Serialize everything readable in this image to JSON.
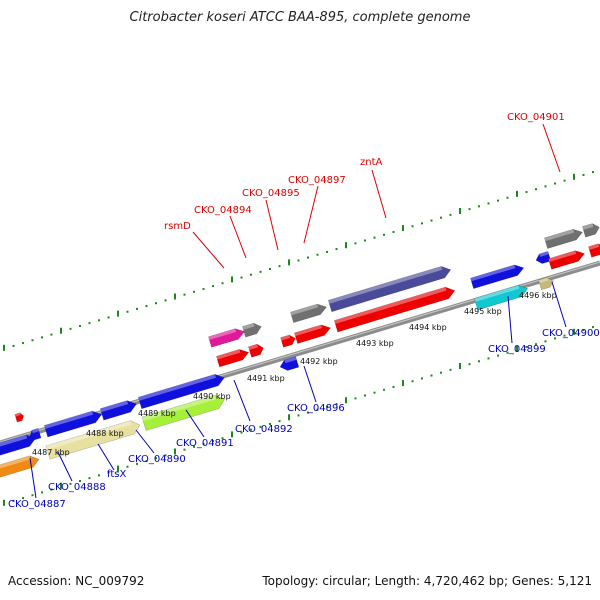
{
  "title": "Citrobacter koseri ATCC BAA-895, complete genome",
  "footer": {
    "accession": "Accession: NC_009792",
    "stats": "Topology: circular; Length: 4,720,462 bp; Genes: 5,121"
  },
  "colors": {
    "backbone": "#8c8c8c",
    "tick": "#1a8a1a",
    "label_top": "#dd0000",
    "label_bottom": "#0000bb",
    "tick_text": "#111111"
  },
  "kbp_ticks": [
    "4487 kbp",
    "4488 kbp",
    "4489 kbp",
    "4490 kbp",
    "4491 kbp",
    "4492 kbp",
    "4493 kbp",
    "4494 kbp",
    "4495 kbp",
    "4496 kbp"
  ],
  "top_labels": [
    "rsmD",
    "CKO_04894",
    "CKO_04895",
    "CKO_04897",
    "zntA",
    "CKO_04901"
  ],
  "bottom_labels": [
    "CKO_04887",
    "CKO_04888",
    "ftsX",
    "CKO_04890",
    "CKO_04891",
    "CKO_04892",
    "CKO_04896",
    "CKO_04899",
    "CKO_04900"
  ],
  "gene_colors": {
    "red": "#ee0000",
    "blue": "#1010dd",
    "gray": "#707070",
    "purple": "#4a4a9a",
    "magenta": "#e0189a",
    "cyan": "#10c8d0",
    "tan": "#c8b87a",
    "khaki": "#e8e0a0",
    "lime": "#a6f03a",
    "orange": "#f08a10"
  }
}
